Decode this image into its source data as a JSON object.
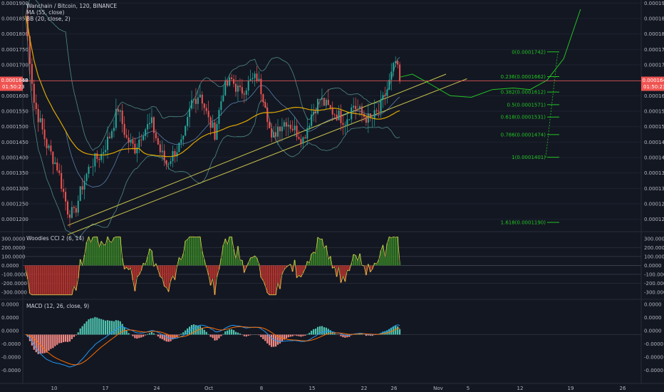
{
  "legend": {
    "title": "Wanchain / Bitcoin, 120, BINANCE",
    "ma": "MA (55, close)",
    "bb": "BB (20, close, 2)",
    "cci": "Woodies CCI 2 (6, 14)",
    "macd": "MACD (12, 26, close, 9)"
  },
  "price_tag": {
    "value": "0.0001648",
    "countdown": "01:50:23"
  },
  "colors": {
    "bg": "#131722",
    "up": "#26a69a",
    "down": "#ef5350",
    "ma": "#e0a800",
    "bb": "#5fa8a0",
    "trend": "#c8c24a",
    "proj": "#22c322",
    "fib": "#22c322",
    "price_line": "#ef5350",
    "macd": "#2196f3",
    "signal": "#ff6d00"
  },
  "chart_data": [
    {
      "type": "candlestick",
      "title": "Wanchain / Bitcoin, 120, BINANCE",
      "ylim": [
        0.000116,
        0.000191
      ],
      "y_ticks": [
        "0.0001900",
        "0.0001850",
        "0.0001800",
        "0.0001750",
        "0.0001700",
        "0.0001650",
        "0.0001600",
        "0.0001550",
        "0.0001500",
        "0.0001450",
        "0.0001400",
        "0.0001350",
        "0.0001300",
        "0.0001250",
        "0.0001200"
      ],
      "x_ticks": [
        "10",
        "17",
        "24",
        "Oct",
        "8",
        "15",
        "22",
        "26",
        "Nov",
        "5",
        "12",
        "19",
        "26"
      ],
      "key_prices": [
        [
          0,
          0.000186
        ],
        [
          4,
          0.000158
        ],
        [
          10,
          0.000144
        ],
        [
          15,
          0.000137
        ],
        [
          20,
          0.000123
        ],
        [
          23,
          0.0001215
        ],
        [
          27,
          0.000131
        ],
        [
          31,
          0.000138
        ],
        [
          36,
          0.000141
        ],
        [
          40,
          0.000147
        ],
        [
          44,
          0.000156
        ],
        [
          48,
          0.000146
        ],
        [
          52,
          0.000143
        ],
        [
          56,
          0.000149
        ],
        [
          60,
          0.000151
        ],
        [
          64,
          0.000142
        ],
        [
          67,
          0.000138
        ],
        [
          71,
          0.000142
        ],
        [
          75,
          0.000145
        ],
        [
          79,
          0.000158
        ],
        [
          83,
          0.000161
        ],
        [
          87,
          0.000152
        ],
        [
          90,
          0.000148
        ],
        [
          94,
          0.000162
        ],
        [
          98,
          0.000165
        ],
        [
          102,
          0.000161
        ],
        [
          106,
          0.000164
        ],
        [
          110,
          0.000166
        ],
        [
          114,
          0.000158
        ],
        [
          117,
          0.000145
        ],
        [
          120,
          0.00015
        ],
        [
          124,
          0.000152
        ],
        [
          128,
          0.000149
        ],
        [
          132,
          0.000146
        ],
        [
          136,
          0.000154
        ],
        [
          140,
          0.000159
        ],
        [
          144,
          0.000156
        ],
        [
          148,
          0.000154
        ],
        [
          152,
          0.000152
        ],
        [
          156,
          0.000157
        ],
        [
          160,
          0.000154
        ],
        [
          164,
          0.000152
        ],
        [
          168,
          0.000155
        ],
        [
          172,
          0.000162
        ],
        [
          176,
          0.000171
        ],
        [
          178,
          0.0001648
        ]
      ],
      "ma_period": 55,
      "bb": {
        "period": 20,
        "mult": 2
      },
      "current_price": 0.0001648,
      "fibonacci": [
        {
          "label": "0(0.0001742)",
          "price": 0.0001742
        },
        {
          "label": "0.236(0.0001662)",
          "price": 0.0001662
        },
        {
          "label": "0.382(0.0001612)",
          "price": 0.0001612
        },
        {
          "label": "0.5(0.0001571)",
          "price": 0.0001571
        },
        {
          "label": "0.618(0.0001531)",
          "price": 0.0001531
        },
        {
          "label": "0.786(0.0001474)",
          "price": 0.0001474
        },
        {
          "label": "1(0.0001401)",
          "price": 0.0001401
        },
        {
          "label": "1.618(0.0001190)",
          "price": 0.000119
        }
      ],
      "trendlines": [
        {
          "from": [
            20,
            0.000118
          ],
          "to": [
            200,
            0.000167
          ]
        },
        {
          "from": [
            20,
            0.000115
          ],
          "to": [
            210,
            0.0001655
          ]
        }
      ],
      "projection": [
        [
          178,
          0.000166
        ],
        [
          184,
          0.000167
        ],
        [
          192,
          0.000164
        ],
        [
          202,
          0.00016
        ],
        [
          212,
          0.0001595
        ],
        [
          222,
          0.000162
        ],
        [
          232,
          0.0001625
        ],
        [
          240,
          0.000162
        ],
        [
          248,
          0.000165
        ],
        [
          256,
          0.000172
        ],
        [
          264,
          0.000188
        ]
      ]
    },
    {
      "type": "line",
      "title": "Woodies CCI 2 (6, 14)",
      "ylim": [
        -380,
        370
      ],
      "y_ticks": [
        "300.0000",
        "200.0000",
        "100.0000",
        "0.0000",
        "-100.0000",
        "-200.0000",
        "-300.0000"
      ]
    },
    {
      "type": "bar",
      "title": "MACD (12, 26, close, 9)",
      "y_ticks": [
        "0.0000",
        "0.0000",
        "0.0000",
        "-0.0000",
        "-0.0000",
        "-0.0000"
      ],
      "params": {
        "fast": 12,
        "slow": 26,
        "signal": 9
      }
    }
  ]
}
